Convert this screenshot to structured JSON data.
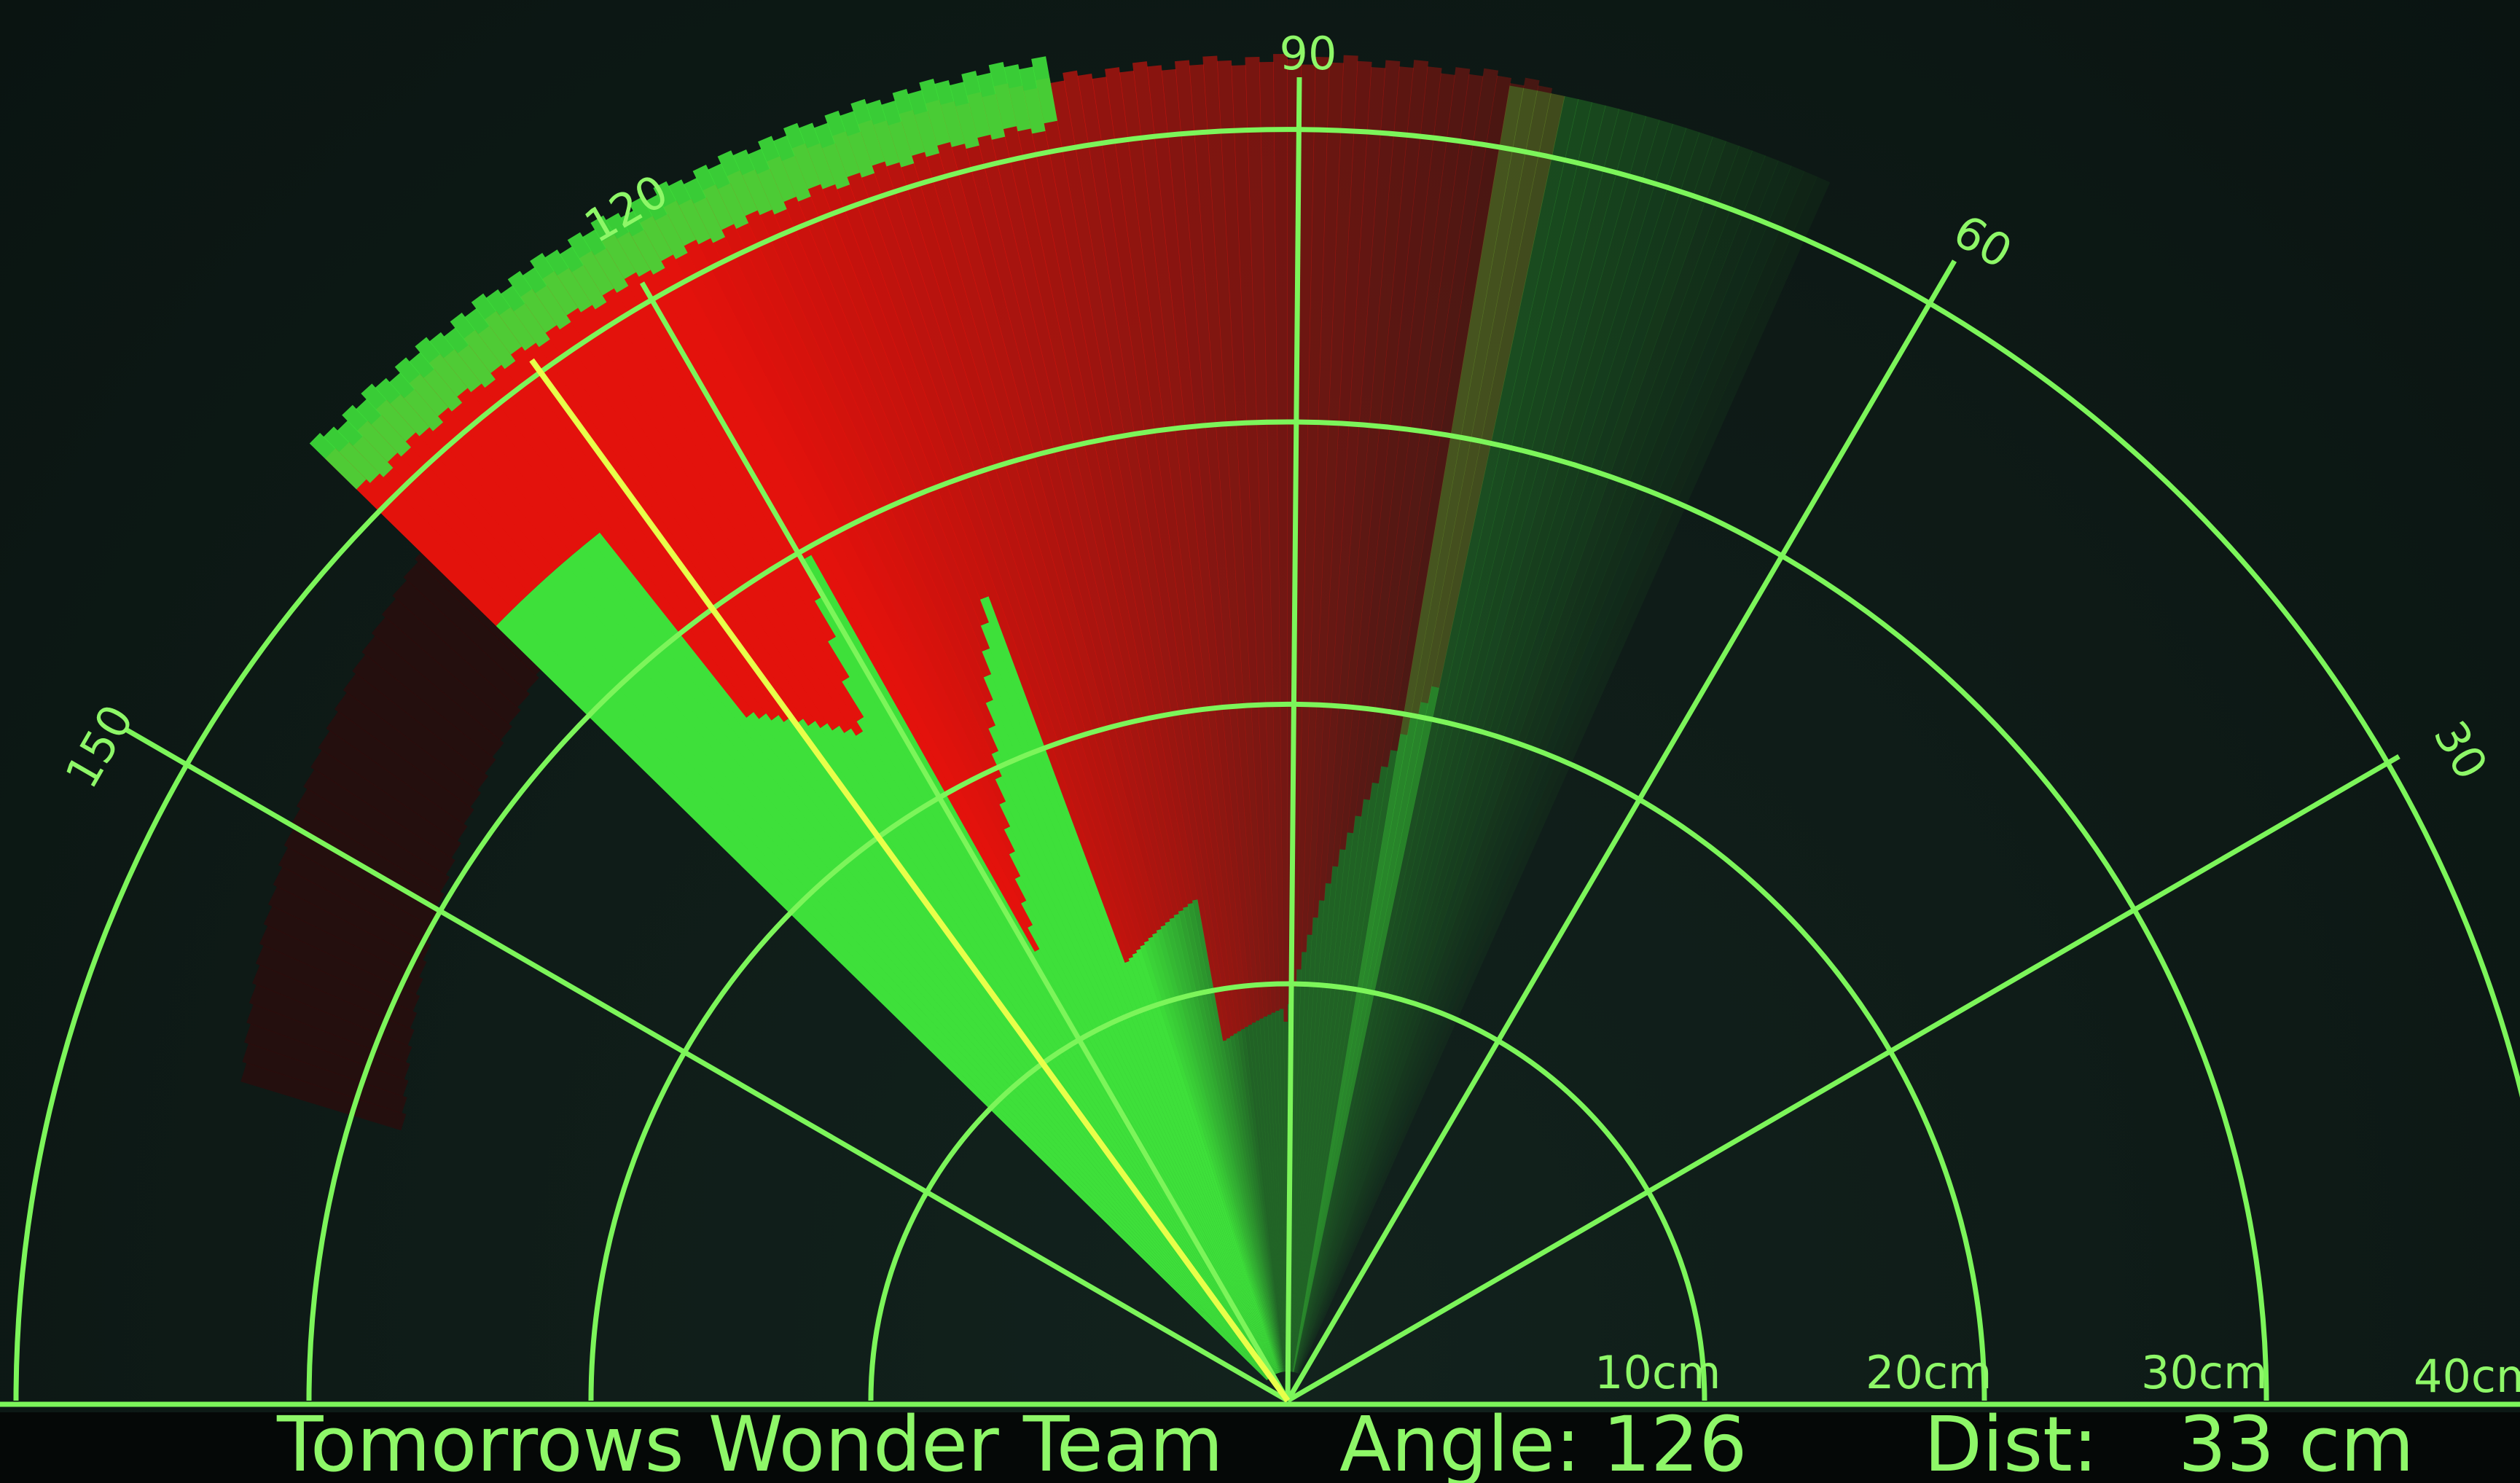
{
  "radar": {
    "angle_labels": [
      "150",
      "120",
      "90",
      "60",
      "30"
    ],
    "range_labels": [
      "10cm",
      "20cm",
      "30cm",
      "40cm"
    ],
    "current_angle_deg": 126,
    "current_distance_cm": 33,
    "max_range_cm": 40,
    "colors": {
      "grid": "#7cf55a",
      "sweep": "#3ee03a",
      "object": "#e3120c",
      "background": "#0f1c18",
      "status_bar": "#050807"
    }
  },
  "status": {
    "team_name": "Tomorrows Wonder Team",
    "angle_label": "Angle:",
    "angle_value": "126",
    "dist_label": "Dist:",
    "dist_value": "33 cm"
  }
}
